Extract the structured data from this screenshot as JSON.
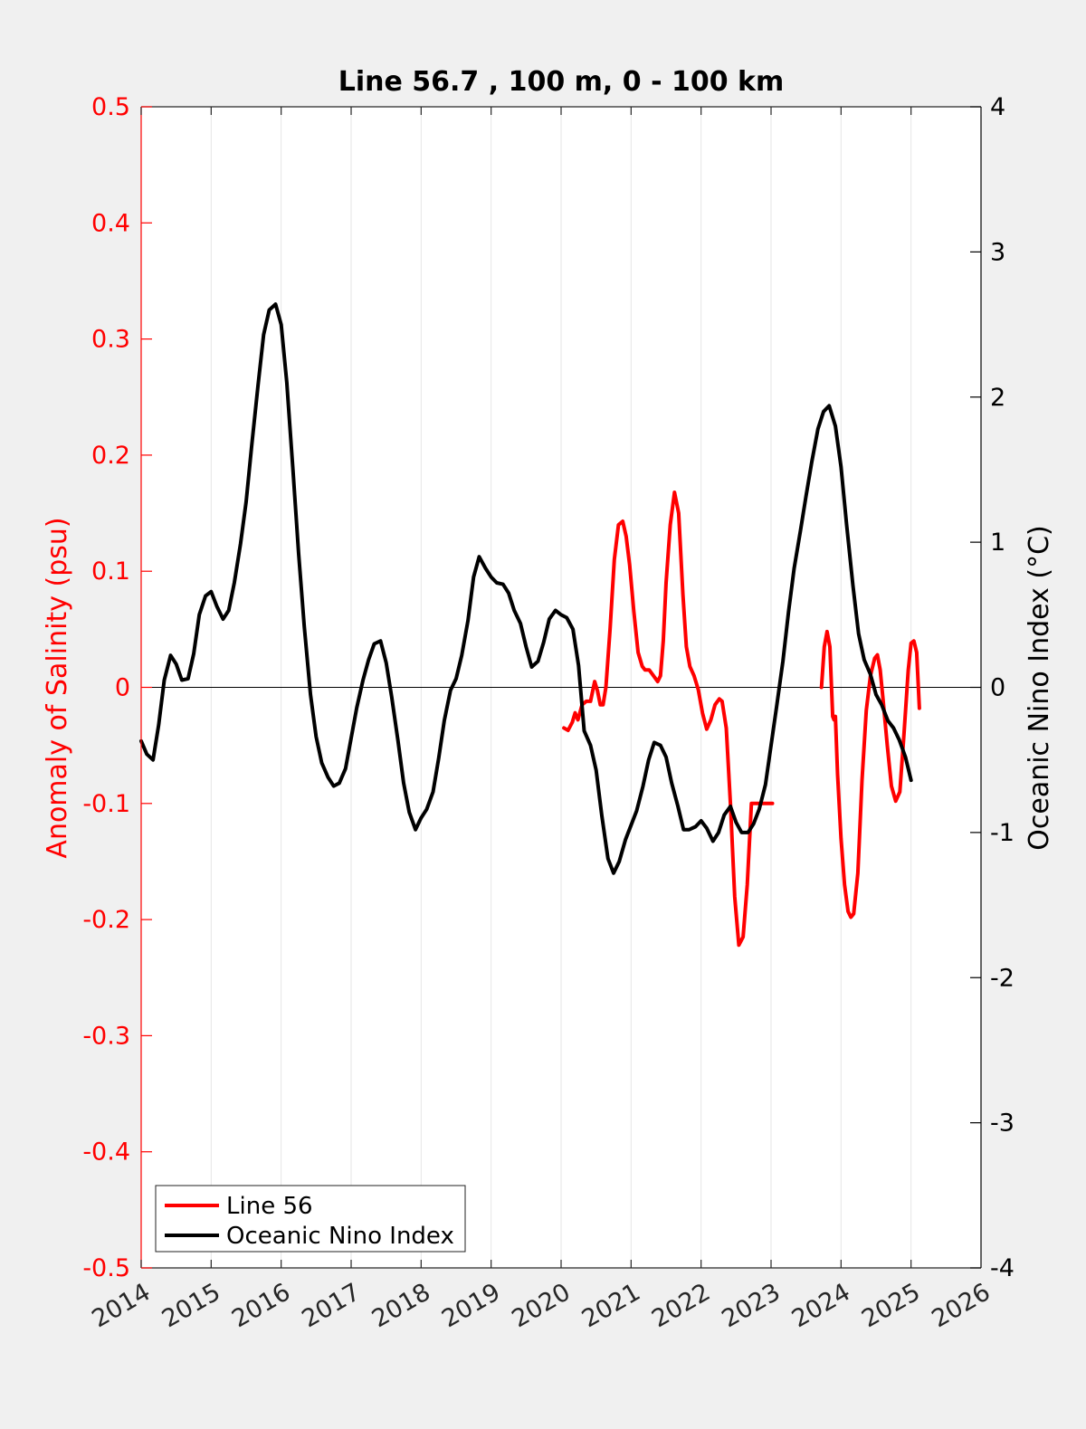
{
  "chart_data": {
    "type": "line",
    "title": "Line 56.7 , 100 m, 0 - 100 km",
    "xlabel": "",
    "ylabel_left": "Anomaly of Salinity (psu)",
    "ylabel_right": "Oceanic Nino Index (°C)",
    "xlim": [
      2014,
      2026
    ],
    "ylim_left": [
      -0.5,
      0.5
    ],
    "ylim_right": [
      -4,
      4
    ],
    "x_ticks": [
      2014,
      2015,
      2016,
      2017,
      2018,
      2019,
      2020,
      2021,
      2022,
      2023,
      2024,
      2025,
      2026
    ],
    "x_tick_labels": [
      "2014",
      "2015",
      "2016",
      "2017",
      "2018",
      "2019",
      "2020",
      "2021",
      "2022",
      "2023",
      "2024",
      "2025",
      "2026"
    ],
    "y_left_ticks": [
      -0.5,
      -0.4,
      -0.3,
      -0.2,
      -0.1,
      0,
      0.1,
      0.2,
      0.3,
      0.4,
      0.5
    ],
    "y_left_tick_labels": [
      "-0.5",
      "-0.4",
      "-0.3",
      "-0.2",
      "-0.1",
      "0",
      "0.1",
      "0.2",
      "0.3",
      "0.4",
      "0.5"
    ],
    "y_right_ticks": [
      -4,
      -3,
      -2,
      -1,
      0,
      1,
      2,
      3,
      4
    ],
    "y_right_tick_labels": [
      "-4",
      "-3",
      "-2",
      "-1",
      "0",
      "1",
      "2",
      "3",
      "4"
    ],
    "grid": "vertical",
    "legend_position": "bottom-left",
    "colors": {
      "line56": "#ff0000",
      "oni": "#000000",
      "left_axis": "#ff0000",
      "right_axis": "#000000"
    },
    "series": [
      {
        "name": "Line 56",
        "axis": "left",
        "segments": [
          {
            "x": [
              2020.04,
              2020.1,
              2020.16,
              2020.2,
              2020.24,
              2020.3,
              2020.36,
              2020.42,
              2020.48,
              2020.52,
              2020.56,
              2020.6,
              2020.64,
              2020.7,
              2020.76,
              2020.82,
              2020.88,
              2020.93,
              2020.98,
              2021.04,
              2021.1,
              2021.16,
              2021.2,
              2021.26,
              2021.32,
              2021.38,
              2021.42,
              2021.46,
              2021.5,
              2021.56,
              2021.62,
              2021.68,
              2021.74,
              2021.79,
              2021.84,
              2021.9,
              2021.96,
              2022.02,
              2022.08,
              2022.14,
              2022.2,
              2022.26,
              2022.3,
              2022.36,
              2022.42,
              2022.48,
              2022.54,
              2022.6,
              2022.66,
              2022.72,
              2022.78,
              2022.84,
              2022.88,
              2022.93,
              2022.98,
              2023.02
            ],
            "y": [
              -0.035,
              -0.037,
              -0.03,
              -0.022,
              -0.028,
              -0.015,
              -0.012,
              -0.012,
              0.005,
              -0.003,
              -0.015,
              -0.015,
              0.0,
              0.05,
              0.11,
              0.14,
              0.143,
              0.13,
              0.105,
              0.065,
              0.03,
              0.018,
              0.015,
              0.015,
              0.01,
              0.005,
              0.01,
              0.04,
              0.09,
              0.14,
              0.168,
              0.15,
              0.08,
              0.035,
              0.018,
              0.01,
              -0.002,
              -0.022,
              -0.036,
              -0.028,
              -0.015,
              -0.01,
              -0.012,
              -0.035,
              -0.1,
              -0.18,
              -0.222,
              -0.215,
              -0.17,
              -0.1,
              -0.1,
              -0.1,
              -0.1,
              -0.1,
              -0.1,
              -0.1
            ]
          },
          {
            "x": [
              2023.72,
              2023.76,
              2023.8,
              2023.84,
              2023.88,
              2023.9,
              2023.92,
              2023.95,
              2024.0,
              2024.05,
              2024.1,
              2024.14,
              2024.18,
              2024.24,
              2024.3,
              2024.36,
              2024.42,
              2024.48,
              2024.52,
              2024.56,
              2024.6,
              2024.66,
              2024.72,
              2024.78,
              2024.84,
              2024.9,
              2024.96,
              2025.0,
              2025.04,
              2025.08,
              2025.12
            ],
            "y": [
              0.0,
              0.035,
              0.048,
              0.035,
              -0.025,
              -0.028,
              -0.025,
              -0.075,
              -0.13,
              -0.17,
              -0.193,
              -0.198,
              -0.195,
              -0.16,
              -0.08,
              -0.02,
              0.01,
              0.025,
              0.028,
              0.015,
              -0.01,
              -0.05,
              -0.085,
              -0.098,
              -0.09,
              -0.04,
              0.015,
              0.038,
              0.04,
              0.03,
              -0.018
            ]
          }
        ]
      },
      {
        "name": "Oceanic Nino Index",
        "axis": "right",
        "x": [
          2014.0,
          2014.08,
          2014.17,
          2014.25,
          2014.33,
          2014.42,
          2014.5,
          2014.58,
          2014.67,
          2014.75,
          2014.83,
          2014.92,
          2015.0,
          2015.08,
          2015.17,
          2015.25,
          2015.33,
          2015.42,
          2015.5,
          2015.58,
          2015.67,
          2015.75,
          2015.83,
          2015.92,
          2016.0,
          2016.08,
          2016.17,
          2016.25,
          2016.33,
          2016.42,
          2016.5,
          2016.58,
          2016.67,
          2016.75,
          2016.83,
          2016.92,
          2017.0,
          2017.08,
          2017.17,
          2017.25,
          2017.33,
          2017.42,
          2017.5,
          2017.58,
          2017.67,
          2017.75,
          2017.83,
          2017.92,
          2018.0,
          2018.08,
          2018.17,
          2018.25,
          2018.33,
          2018.42,
          2018.5,
          2018.58,
          2018.67,
          2018.75,
          2018.83,
          2018.92,
          2019.0,
          2019.08,
          2019.17,
          2019.25,
          2019.33,
          2019.42,
          2019.5,
          2019.58,
          2019.67,
          2019.75,
          2019.83,
          2019.92,
          2020.0,
          2020.08,
          2020.17,
          2020.25,
          2020.33,
          2020.42,
          2020.5,
          2020.58,
          2020.67,
          2020.75,
          2020.83,
          2020.92,
          2021.0,
          2021.08,
          2021.17,
          2021.25,
          2021.33,
          2021.42,
          2021.5,
          2021.58,
          2021.67,
          2021.75,
          2021.83,
          2021.92,
          2022.0,
          2022.08,
          2022.17,
          2022.25,
          2022.33,
          2022.42,
          2022.5,
          2022.58,
          2022.67,
          2022.75,
          2022.83,
          2022.92,
          2023.0,
          2023.08,
          2023.17,
          2023.25,
          2023.33,
          2023.42,
          2023.5,
          2023.58,
          2023.67,
          2023.75,
          2023.83,
          2023.92,
          2024.0,
          2024.08,
          2024.17,
          2024.25,
          2024.33,
          2024.42,
          2024.5,
          2024.58,
          2024.67,
          2024.75,
          2024.83,
          2024.92,
          2025.0
        ],
        "y": [
          -0.37,
          -0.46,
          -0.5,
          -0.26,
          0.05,
          0.22,
          0.16,
          0.05,
          0.06,
          0.23,
          0.5,
          0.63,
          0.66,
          0.56,
          0.47,
          0.53,
          0.72,
          0.99,
          1.28,
          1.67,
          2.08,
          2.43,
          2.6,
          2.64,
          2.5,
          2.1,
          1.49,
          0.92,
          0.42,
          -0.05,
          -0.34,
          -0.52,
          -0.62,
          -0.68,
          -0.66,
          -0.56,
          -0.35,
          -0.14,
          0.05,
          0.19,
          0.3,
          0.32,
          0.17,
          -0.07,
          -0.37,
          -0.66,
          -0.86,
          -0.98,
          -0.9,
          -0.84,
          -0.72,
          -0.49,
          -0.23,
          -0.02,
          0.06,
          0.22,
          0.46,
          0.76,
          0.9,
          0.82,
          0.76,
          0.72,
          0.71,
          0.65,
          0.53,
          0.44,
          0.28,
          0.14,
          0.18,
          0.31,
          0.47,
          0.53,
          0.5,
          0.48,
          0.4,
          0.15,
          -0.3,
          -0.4,
          -0.57,
          -0.88,
          -1.18,
          -1.28,
          -1.2,
          -1.05,
          -0.95,
          -0.85,
          -0.68,
          -0.5,
          -0.38,
          -0.4,
          -0.48,
          -0.66,
          -0.82,
          -0.98,
          -0.98,
          -0.96,
          -0.92,
          -0.97,
          -1.06,
          -1.0,
          -0.88,
          -0.82,
          -0.93,
          -1.0,
          -1.0,
          -0.94,
          -0.84,
          -0.67,
          -0.4,
          -0.13,
          0.18,
          0.52,
          0.82,
          1.08,
          1.32,
          1.55,
          1.78,
          1.9,
          1.94,
          1.8,
          1.52,
          1.12,
          0.7,
          0.37,
          0.19,
          0.09,
          -0.05,
          -0.12,
          -0.23,
          -0.28,
          -0.36,
          -0.48,
          -0.64
        ]
      }
    ]
  }
}
